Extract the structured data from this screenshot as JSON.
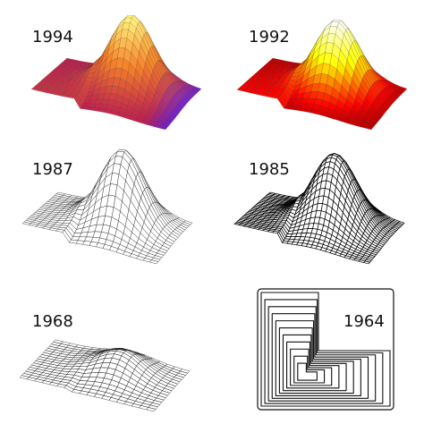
{
  "panels": [
    {
      "label": "1994"
    },
    {
      "label": "1992"
    },
    {
      "label": "1987"
    },
    {
      "label": "1985"
    },
    {
      "label": "1968"
    },
    {
      "label": "1964"
    }
  ]
}
